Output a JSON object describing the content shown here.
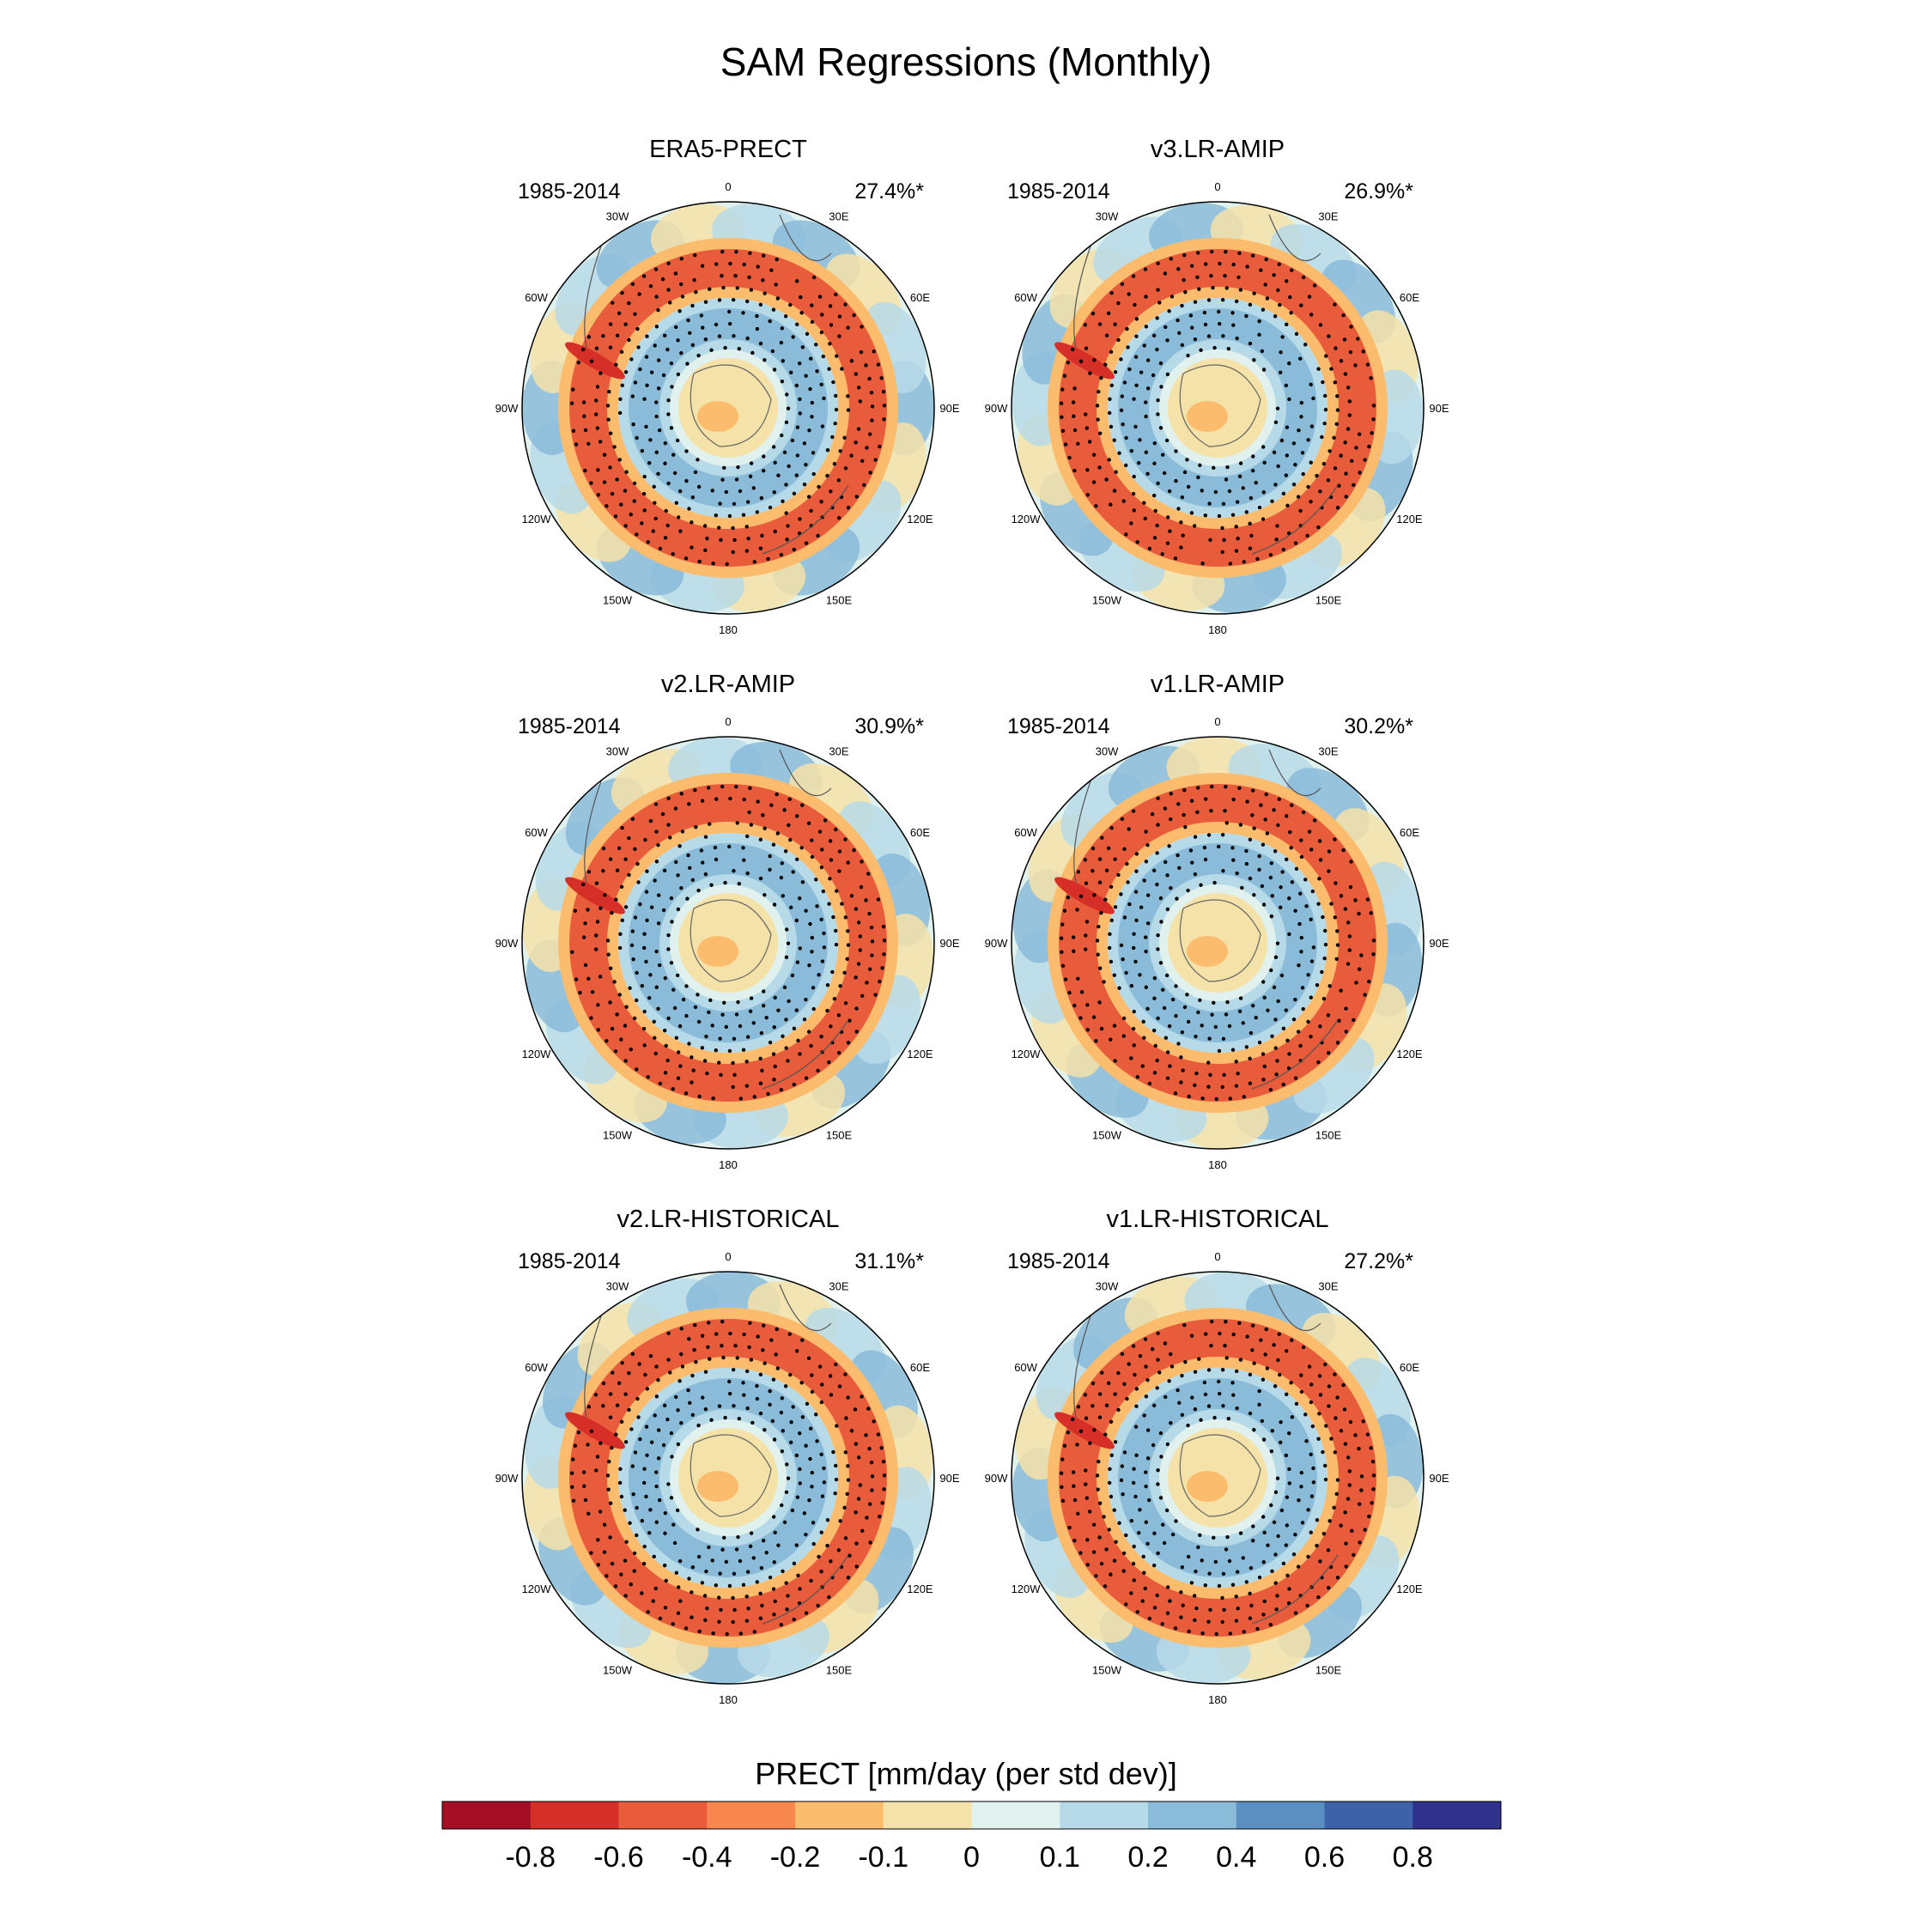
{
  "title": "SAM Regressions (Monthly)",
  "colorbar": {
    "label": "PRECT [mm/day (per std dev)]",
    "ticks": [
      "-0.8",
      "-0.6",
      "-0.4",
      "-0.2",
      "-0.1",
      "0",
      "0.1",
      "0.2",
      "0.4",
      "0.6",
      "0.8"
    ],
    "colors": [
      "#a50f26",
      "#d62f27",
      "#e95c3b",
      "#f7874f",
      "#fcbc6e",
      "#f5e2a8",
      "#e1f2ee",
      "#b7dae9",
      "#8abbd9",
      "#5b8fc2",
      "#3e62aa",
      "#2f318c"
    ]
  },
  "longitude_labels": [
    "0",
    "30E",
    "60E",
    "90E",
    "120E",
    "150E",
    "180",
    "150W",
    "120W",
    "90W",
    "60W",
    "30W"
  ],
  "panels": [
    {
      "name": "ERA5-PRECT",
      "period": "1985-2014",
      "variance": "27.4%*"
    },
    {
      "name": "v3.LR-AMIP",
      "period": "1985-2014",
      "variance": "26.9%*"
    },
    {
      "name": "v2.LR-AMIP",
      "period": "1985-2014",
      "variance": "30.9%*"
    },
    {
      "name": "v1.LR-AMIP",
      "period": "1985-2014",
      "variance": "30.2%*"
    },
    {
      "name": "v2.LR-HISTORICAL",
      "period": "1985-2014",
      "variance": "31.1%*"
    },
    {
      "name": "v1.LR-HISTORICAL",
      "period": "1985-2014",
      "variance": "27.2%*"
    }
  ],
  "chart_data": {
    "type": "heatmap",
    "title": "SAM Regressions (Monthly)",
    "projection": "south polar stereographic",
    "variable": "PRECT [mm/day (per std dev)]",
    "contour_levels": [
      -0.8,
      -0.6,
      -0.4,
      -0.2,
      -0.1,
      0,
      0.1,
      0.2,
      0.4,
      0.6,
      0.8
    ],
    "stippling": "statistically significant regions",
    "pattern_description": "annular pattern: positive (wet) regression over Antarctic coast ring and mid-latitude ring; negative (dry) ring between",
    "panels": [
      {
        "name": "ERA5-PRECT",
        "period": "1985-2014",
        "variance_explained": 27.4
      },
      {
        "name": "v3.LR-AMIP",
        "period": "1985-2014",
        "variance_explained": 26.9
      },
      {
        "name": "v2.LR-AMIP",
        "period": "1985-2014",
        "variance_explained": 30.9
      },
      {
        "name": "v1.LR-AMIP",
        "period": "1985-2014",
        "variance_explained": 30.2
      },
      {
        "name": "v2.LR-HISTORICAL",
        "period": "1985-2014",
        "variance_explained": 31.1
      },
      {
        "name": "v1.LR-HISTORICAL",
        "period": "1985-2014",
        "variance_explained": 27.2
      }
    ]
  }
}
